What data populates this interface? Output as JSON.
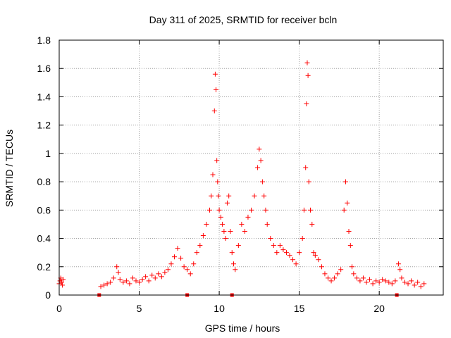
{
  "chart_data": {
    "type": "scatter",
    "title": "Day 311 of 2025, SRMTID for receiver bcln",
    "xlabel": "GPS time / hours",
    "ylabel": "SRMTID / TECUs",
    "xlim": [
      0,
      24
    ],
    "ylim": [
      0,
      1.8
    ],
    "x_ticks": [
      0,
      5,
      10,
      15,
      20
    ],
    "x_tick_labels": [
      "0",
      "5",
      "10",
      "15",
      "20"
    ],
    "y_ticks": [
      0,
      0.2,
      0.4,
      0.6,
      0.8,
      1,
      1.2,
      1.4,
      1.6,
      1.8
    ],
    "y_tick_labels": [
      "0",
      "0.2",
      "0.4",
      "0.6",
      "0.8",
      "1",
      "1.2",
      "1.4",
      "1.6",
      "1.8"
    ],
    "grid": true,
    "marker": "plus",
    "color": "#ff0000",
    "data_gap_markers_hours": [
      2.5,
      8.0,
      10.8,
      21.1
    ],
    "series": [
      {
        "name": "SRMTID",
        "x": [
          0.0,
          0.05,
          0.1,
          0.15,
          0.2,
          0.25,
          2.6,
          2.8,
          3.0,
          3.2,
          3.4,
          3.6,
          3.7,
          3.8,
          4.0,
          4.2,
          4.4,
          4.6,
          4.8,
          5.0,
          5.2,
          5.4,
          5.6,
          5.8,
          6.0,
          6.2,
          6.4,
          6.6,
          6.8,
          7.0,
          7.2,
          7.4,
          7.6,
          7.8,
          8.0,
          8.2,
          8.4,
          8.6,
          8.8,
          9.0,
          9.2,
          9.4,
          9.5,
          9.6,
          9.7,
          9.75,
          9.8,
          9.85,
          9.9,
          9.95,
          10.0,
          10.1,
          10.2,
          10.3,
          10.4,
          10.5,
          10.6,
          10.7,
          10.8,
          10.9,
          11.0,
          11.2,
          11.4,
          11.6,
          11.8,
          12.0,
          12.2,
          12.4,
          12.5,
          12.6,
          12.7,
          12.8,
          12.9,
          13.0,
          13.2,
          13.4,
          13.6,
          13.8,
          14.0,
          14.2,
          14.4,
          14.6,
          14.8,
          15.0,
          15.2,
          15.3,
          15.4,
          15.45,
          15.5,
          15.55,
          15.6,
          15.7,
          15.8,
          15.9,
          16.0,
          16.2,
          16.4,
          16.6,
          16.8,
          17.0,
          17.2,
          17.4,
          17.6,
          17.8,
          17.9,
          18.0,
          18.1,
          18.2,
          18.3,
          18.4,
          18.6,
          18.8,
          19.0,
          19.2,
          19.4,
          19.6,
          19.8,
          20.0,
          20.2,
          20.4,
          20.6,
          20.8,
          21.0,
          21.2,
          21.3,
          21.4,
          21.6,
          21.8,
          22.0,
          22.2,
          22.4,
          22.6,
          22.8
        ],
        "y": [
          0.08,
          0.1,
          0.12,
          0.09,
          0.07,
          0.11,
          0.06,
          0.07,
          0.08,
          0.09,
          0.12,
          0.2,
          0.16,
          0.11,
          0.09,
          0.1,
          0.08,
          0.12,
          0.1,
          0.09,
          0.11,
          0.13,
          0.1,
          0.14,
          0.12,
          0.15,
          0.13,
          0.16,
          0.18,
          0.22,
          0.27,
          0.33,
          0.26,
          0.2,
          0.18,
          0.15,
          0.22,
          0.3,
          0.35,
          0.42,
          0.5,
          0.6,
          0.7,
          0.85,
          1.3,
          1.56,
          1.45,
          0.95,
          0.8,
          0.7,
          0.6,
          0.55,
          0.5,
          0.45,
          0.4,
          0.65,
          0.7,
          0.45,
          0.3,
          0.22,
          0.18,
          0.35,
          0.5,
          0.45,
          0.55,
          0.6,
          0.7,
          0.9,
          1.03,
          0.95,
          0.8,
          0.7,
          0.6,
          0.5,
          0.4,
          0.35,
          0.3,
          0.35,
          0.32,
          0.3,
          0.28,
          0.25,
          0.22,
          0.3,
          0.4,
          0.6,
          0.9,
          1.35,
          1.64,
          1.55,
          0.8,
          0.6,
          0.5,
          0.3,
          0.28,
          0.25,
          0.2,
          0.15,
          0.12,
          0.1,
          0.12,
          0.15,
          0.18,
          0.6,
          0.8,
          0.65,
          0.45,
          0.35,
          0.2,
          0.15,
          0.12,
          0.1,
          0.12,
          0.09,
          0.11,
          0.08,
          0.1,
          0.09,
          0.11,
          0.1,
          0.09,
          0.08,
          0.1,
          0.22,
          0.18,
          0.12,
          0.09,
          0.08,
          0.1,
          0.07,
          0.09,
          0.06,
          0.08
        ]
      }
    ]
  }
}
